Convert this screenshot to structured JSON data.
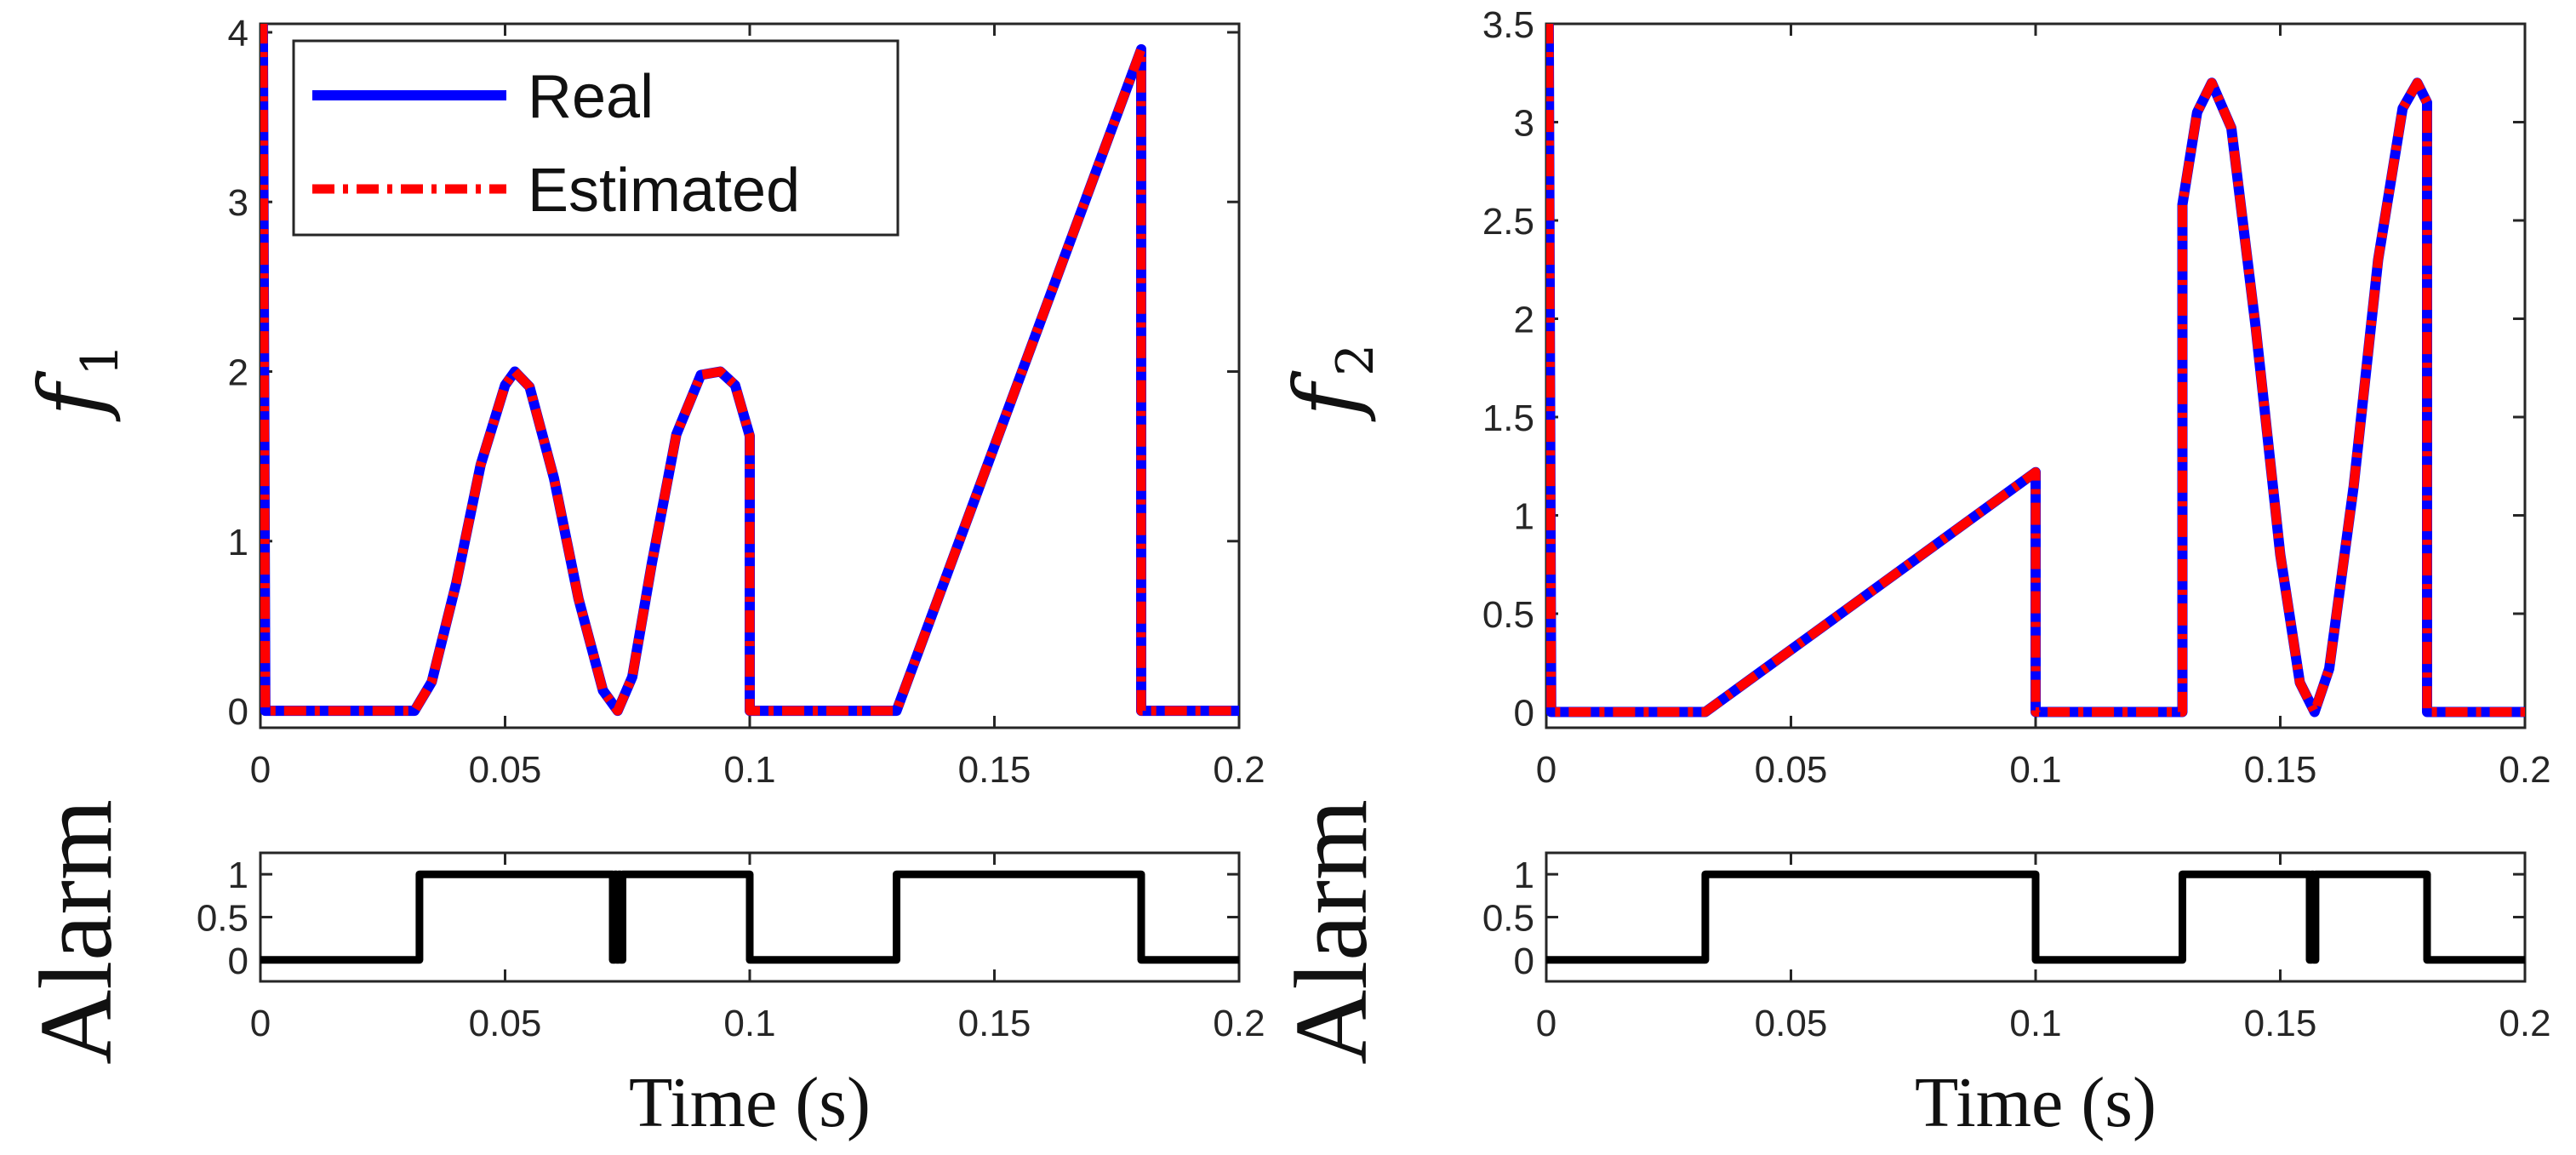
{
  "chart_data": [
    {
      "id": "f1",
      "type": "line",
      "ylabel": "f",
      "ylabel_sub": "1",
      "xlabel": "",
      "xlim": [
        0,
        0.2
      ],
      "ylim": [
        -0.1,
        4.05
      ],
      "xticks": [
        0,
        0.05,
        0.1,
        0.15,
        0.2
      ],
      "xtick_labels": [
        "0",
        "0.05",
        "0.1",
        "0.15",
        "0.2"
      ],
      "yticks": [
        0,
        1,
        2,
        3,
        4
      ],
      "ytick_labels": [
        "0",
        "1",
        "2",
        "3",
        "4"
      ],
      "legend": [
        "Real",
        "Estimated"
      ],
      "legend_position": "top-left",
      "series": [
        {
          "name": "Real",
          "color": "#0000ff",
          "style": "solid",
          "x": [
            0,
            0.0005,
            0.001,
            0.0315,
            0.035,
            0.04,
            0.045,
            0.05,
            0.052,
            0.055,
            0.06,
            0.065,
            0.07,
            0.073,
            0.076,
            0.08,
            0.085,
            0.09,
            0.094,
            0.097,
            0.1,
            0.1,
            0.13,
            0.18,
            0.18,
            0.2
          ],
          "y": [
            4.05,
            4.05,
            0,
            0,
            0.17,
            0.75,
            1.45,
            1.92,
            2.0,
            1.91,
            1.37,
            0.66,
            0.12,
            0,
            0.2,
            0.87,
            1.63,
            1.98,
            2.0,
            1.92,
            1.62,
            0,
            0,
            3.9,
            0,
            0
          ]
        },
        {
          "name": "Estimated",
          "color": "#ff0000",
          "style": "dashdot",
          "x": [
            0,
            0.0005,
            0.001,
            0.0315,
            0.035,
            0.04,
            0.045,
            0.05,
            0.052,
            0.055,
            0.06,
            0.065,
            0.07,
            0.073,
            0.076,
            0.08,
            0.085,
            0.09,
            0.094,
            0.097,
            0.1,
            0.1,
            0.13,
            0.18,
            0.18,
            0.2
          ],
          "y": [
            4.05,
            4.05,
            0,
            0,
            0.17,
            0.75,
            1.45,
            1.92,
            2.0,
            1.91,
            1.37,
            0.66,
            0.12,
            0,
            0.2,
            0.87,
            1.63,
            1.98,
            2.0,
            1.92,
            1.62,
            0,
            0,
            3.9,
            0,
            0
          ]
        }
      ]
    },
    {
      "id": "alarm1",
      "type": "line",
      "ylabel": "Alarm",
      "xlabel": "Time (s)",
      "xlim": [
        0,
        0.2
      ],
      "ylim": [
        -0.25,
        1.25
      ],
      "xticks": [
        0,
        0.05,
        0.1,
        0.15,
        0.2
      ],
      "xtick_labels": [
        "0",
        "0.05",
        "0.1",
        "0.15",
        "0.2"
      ],
      "yticks": [
        0,
        0.5,
        1
      ],
      "ytick_labels": [
        "0",
        "0.5",
        "1"
      ],
      "series": [
        {
          "name": "Alarm",
          "color": "#000000",
          "style": "solid",
          "x": [
            0,
            0.0325,
            0.0325,
            0.072,
            0.072,
            0.0724,
            0.0724,
            0.0728,
            0.0728,
            0.0732,
            0.0732,
            0.0736,
            0.0736,
            0.074,
            0.074,
            0.1,
            0.1,
            0.13,
            0.13,
            0.18,
            0.18,
            0.2
          ],
          "y": [
            0,
            0,
            1,
            1,
            0,
            0,
            1,
            1,
            0,
            0,
            1,
            1,
            0,
            0,
            1,
            1,
            0,
            0,
            1,
            1,
            0,
            0
          ]
        }
      ]
    },
    {
      "id": "f2",
      "type": "line",
      "ylabel": "f",
      "ylabel_sub": "2",
      "xlabel": "",
      "xlim": [
        0,
        0.2
      ],
      "ylim": [
        -0.08,
        3.5
      ],
      "xticks": [
        0,
        0.05,
        0.1,
        0.15,
        0.2
      ],
      "xtick_labels": [
        "0",
        "0.05",
        "0.1",
        "0.15",
        "0.2"
      ],
      "yticks": [
        0,
        0.5,
        1,
        1.5,
        2,
        2.5,
        3,
        3.5
      ],
      "ytick_labels": [
        "0",
        "0.5",
        "1",
        "1.5",
        "2",
        "2.5",
        "3",
        "3.5"
      ],
      "series": [
        {
          "name": "Real",
          "color": "#0000ff",
          "style": "solid",
          "x": [
            0,
            0.0005,
            0.001,
            0.0325,
            0.1,
            0.1,
            0.13,
            0.13,
            0.133,
            0.136,
            0.14,
            0.145,
            0.15,
            0.154,
            0.157,
            0.16,
            0.165,
            0.17,
            0.175,
            0.178,
            0.18,
            0.18,
            0.2
          ],
          "y": [
            3.5,
            3.5,
            0,
            0,
            1.22,
            0,
            0,
            2.58,
            3.05,
            3.2,
            2.97,
            1.95,
            0.8,
            0.15,
            0,
            0.22,
            1.15,
            2.3,
            3.07,
            3.2,
            3.1,
            0,
            0
          ]
        },
        {
          "name": "Estimated",
          "color": "#ff0000",
          "style": "dashdot",
          "x": [
            0,
            0.0005,
            0.001,
            0.0325,
            0.1,
            0.1,
            0.13,
            0.13,
            0.133,
            0.136,
            0.14,
            0.145,
            0.15,
            0.154,
            0.157,
            0.16,
            0.165,
            0.17,
            0.175,
            0.178,
            0.18,
            0.18,
            0.2
          ],
          "y": [
            3.5,
            3.5,
            0,
            0,
            1.22,
            0,
            0,
            2.58,
            3.05,
            3.2,
            2.97,
            1.95,
            0.8,
            0.15,
            0,
            0.22,
            1.15,
            2.3,
            3.07,
            3.2,
            3.1,
            0,
            0
          ]
        }
      ]
    },
    {
      "id": "alarm2",
      "type": "line",
      "ylabel": "Alarm",
      "xlabel": "Time (s)",
      "xlim": [
        0,
        0.2
      ],
      "ylim": [
        -0.25,
        1.25
      ],
      "xticks": [
        0,
        0.05,
        0.1,
        0.15,
        0.2
      ],
      "xtick_labels": [
        "0",
        "0.05",
        "0.1",
        "0.15",
        "0.2"
      ],
      "yticks": [
        0,
        0.5,
        1
      ],
      "ytick_labels": [
        "0",
        "0.5",
        "1"
      ],
      "series": [
        {
          "name": "Alarm",
          "color": "#000000",
          "style": "solid",
          "x": [
            0,
            0.0325,
            0.0325,
            0.1,
            0.1,
            0.13,
            0.13,
            0.156,
            0.156,
            0.1564,
            0.1564,
            0.1568,
            0.1568,
            0.1572,
            0.1572,
            0.1576,
            0.1576,
            0.18,
            0.18,
            0.2
          ],
          "y": [
            0,
            0,
            1,
            1,
            0,
            0,
            1,
            1,
            0,
            0,
            1,
            1,
            0,
            0,
            1,
            1,
            1,
            1,
            0,
            0
          ]
        }
      ]
    }
  ]
}
